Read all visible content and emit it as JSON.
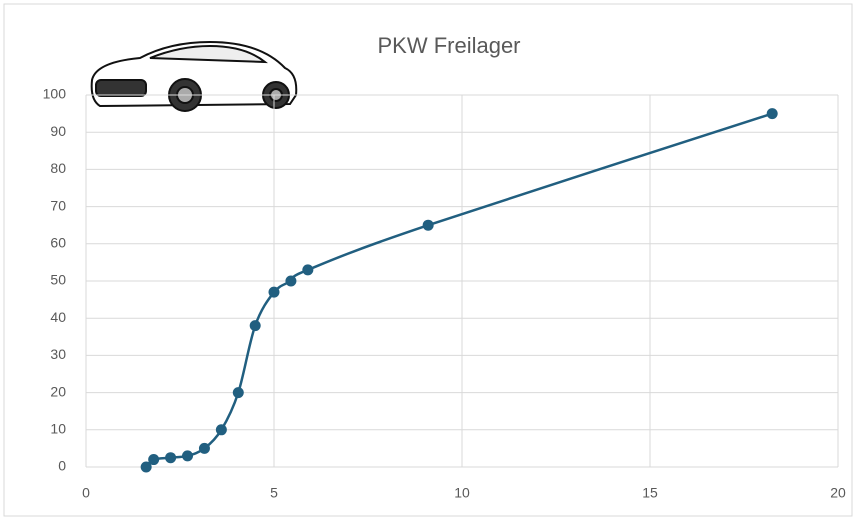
{
  "chart_data": {
    "type": "line",
    "title": "PKW Freilager",
    "x": [
      1.6,
      1.8,
      2.25,
      2.7,
      3.15,
      3.6,
      4.05,
      4.5,
      5,
      5.45,
      5.9,
      9.1,
      18.25
    ],
    "series": [
      {
        "color": "#215f80",
        "values": [
          0,
          2,
          2.5,
          3,
          5,
          10,
          20,
          38,
          47,
          50,
          53,
          65,
          95
        ]
      }
    ],
    "xlim": [
      0,
      20
    ],
    "xticks": [
      0,
      5,
      10,
      15,
      20
    ],
    "ylim": [
      0,
      100
    ],
    "yticks": [
      0,
      10,
      20,
      30,
      40,
      50,
      60,
      70,
      80,
      90,
      100
    ],
    "grid": true,
    "smooth": true
  }
}
